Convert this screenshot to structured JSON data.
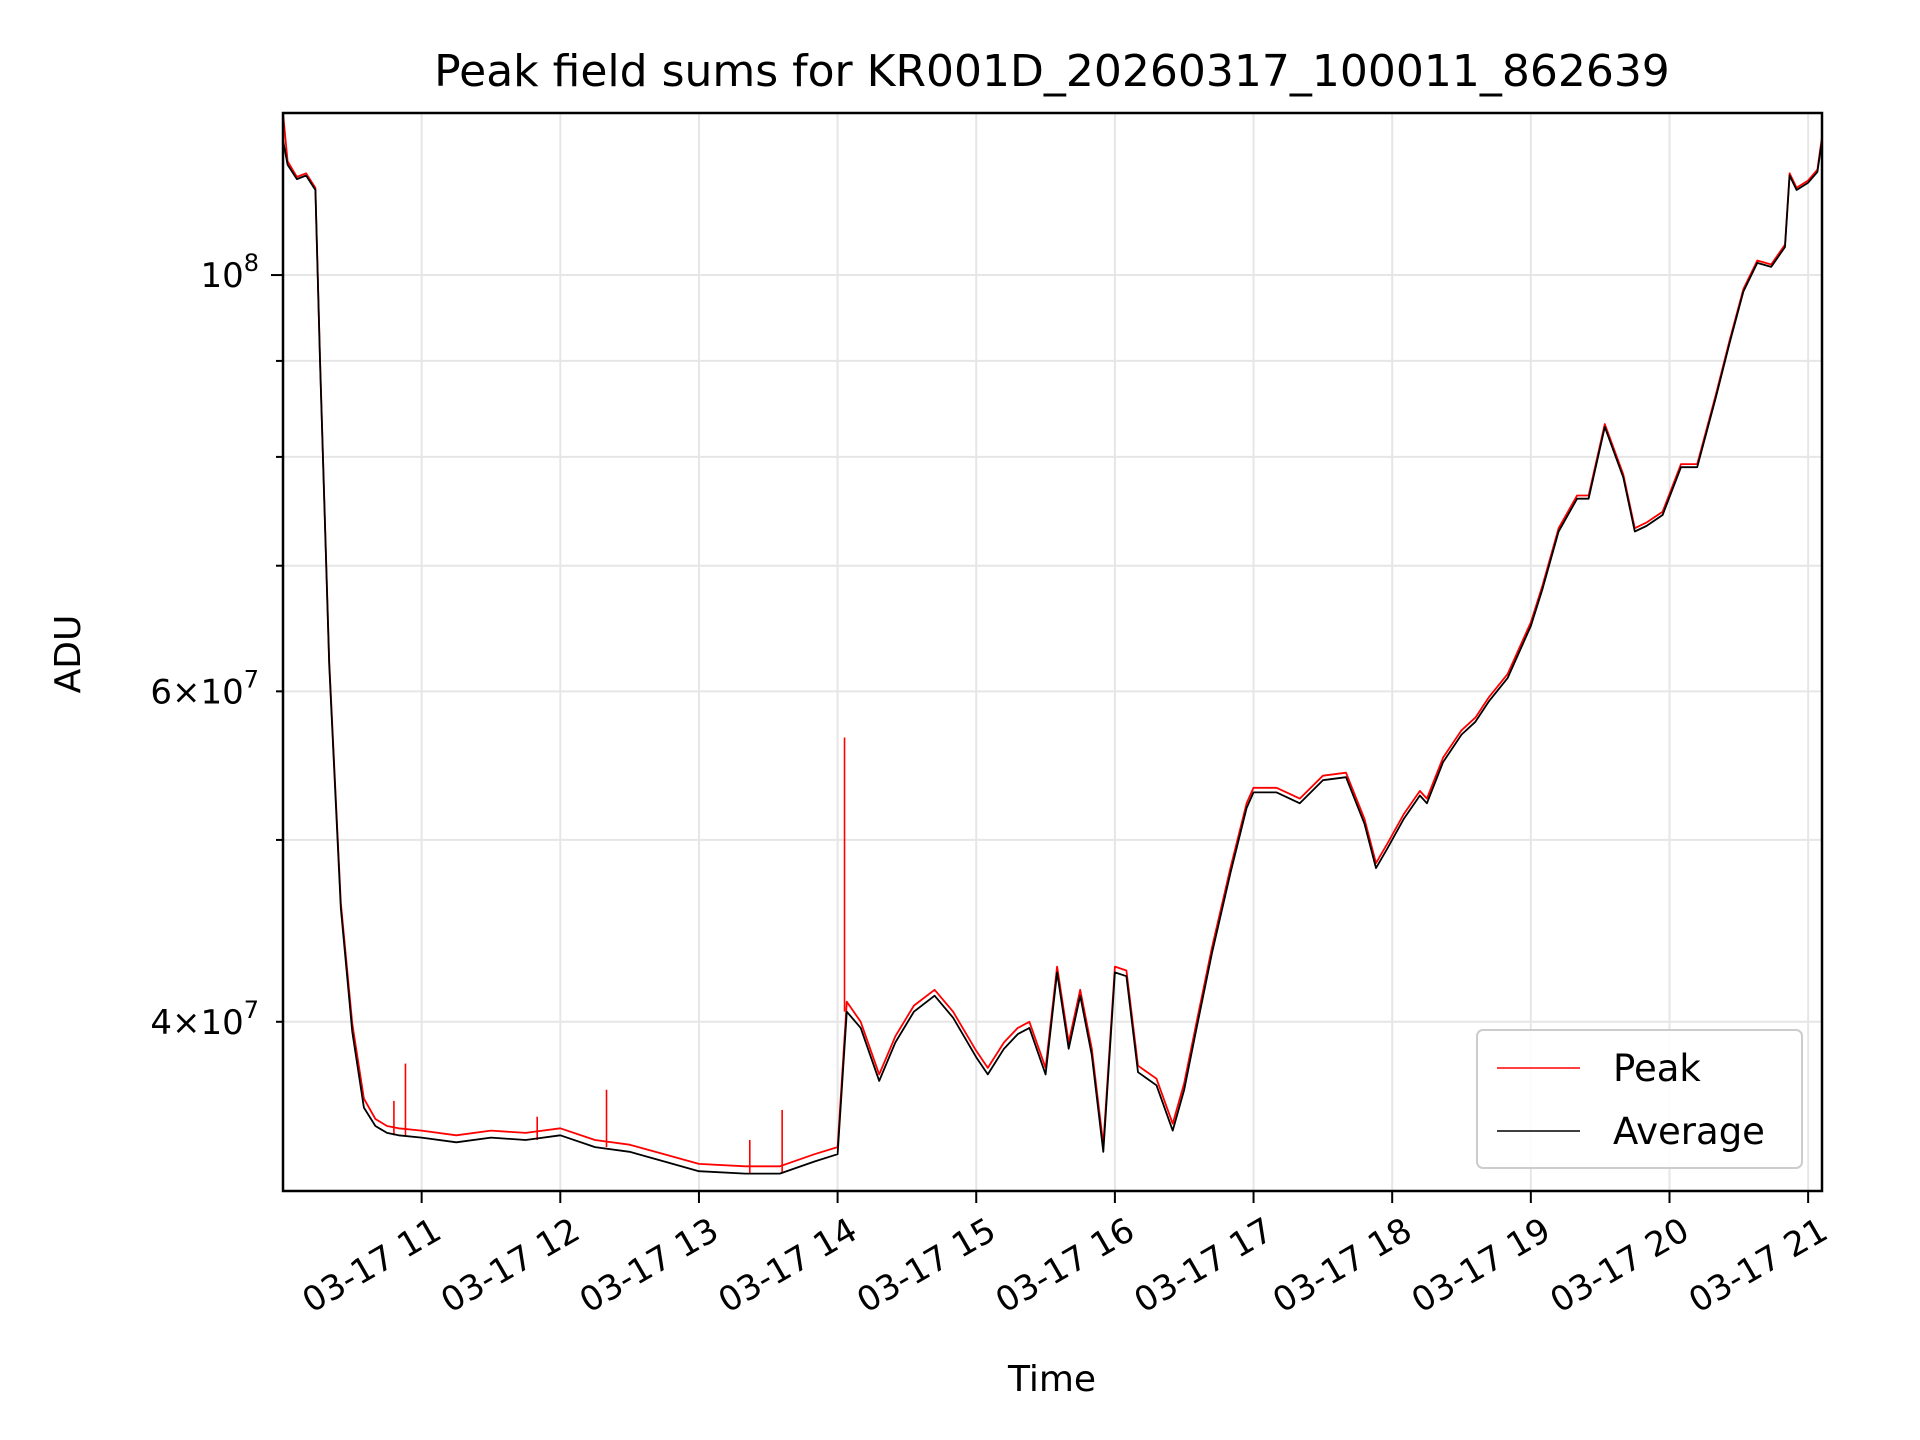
{
  "chart_data": {
    "type": "line",
    "title": "Peak field sums for KR001D_20260317_100011_862639",
    "xlabel": "Time",
    "ylabel": "ADU",
    "y_scale": "log",
    "grid": true,
    "legend_position": "lower-right",
    "xlim": [
      "2026-03-17 10:00",
      "2026-03-17 21:06"
    ],
    "ylim": [
      32500000,
      122000000
    ],
    "x_ticks": [
      "2026-03-17 11:00",
      "2026-03-17 12:00",
      "2026-03-17 13:00",
      "2026-03-17 14:00",
      "2026-03-17 15:00",
      "2026-03-17 16:00",
      "2026-03-17 17:00",
      "2026-03-17 18:00",
      "2026-03-17 19:00",
      "2026-03-17 20:00",
      "2026-03-17 21:00"
    ],
    "x_tick_labels": [
      "03-17 11",
      "03-17 12",
      "03-17 13",
      "03-17 14",
      "03-17 15",
      "03-17 16",
      "03-17 17",
      "03-17 18",
      "03-17 19",
      "03-17 20",
      "03-17 21"
    ],
    "y_major_ticks": [
      {
        "value": 100000000,
        "base": "10",
        "exp": "8"
      }
    ],
    "y_minor_ticks": [
      {
        "value": 40000000,
        "mant": "4",
        "base": "10",
        "exp": "7"
      },
      {
        "value": 60000000,
        "mant": "6",
        "base": "10",
        "exp": "7"
      },
      {
        "value": 50000000
      },
      {
        "value": 70000000
      },
      {
        "value": 80000000
      },
      {
        "value": 90000000
      }
    ],
    "x": [
      "2026-03-17 10:00",
      "2026-03-17 10:02",
      "2026-03-17 10:06",
      "2026-03-17 10:10",
      "2026-03-17 10:14",
      "2026-03-17 10:16",
      "2026-03-17 10:20",
      "2026-03-17 10:25",
      "2026-03-17 10:30",
      "2026-03-17 10:35",
      "2026-03-17 10:40",
      "2026-03-17 10:45",
      "2026-03-17 10:50",
      "2026-03-17 11:00",
      "2026-03-17 11:15",
      "2026-03-17 11:30",
      "2026-03-17 11:45",
      "2026-03-17 12:00",
      "2026-03-17 12:15",
      "2026-03-17 12:30",
      "2026-03-17 12:45",
      "2026-03-17 13:00",
      "2026-03-17 13:20",
      "2026-03-17 13:35",
      "2026-03-17 13:50",
      "2026-03-17 14:00",
      "2026-03-17 14:04",
      "2026-03-17 14:10",
      "2026-03-17 14:18",
      "2026-03-17 14:25",
      "2026-03-17 14:33",
      "2026-03-17 14:42",
      "2026-03-17 14:50",
      "2026-03-17 15:00",
      "2026-03-17 15:05",
      "2026-03-17 15:12",
      "2026-03-17 15:18",
      "2026-03-17 15:23",
      "2026-03-17 15:30",
      "2026-03-17 15:35",
      "2026-03-17 15:40",
      "2026-03-17 15:45",
      "2026-03-17 15:50",
      "2026-03-17 15:55",
      "2026-03-17 16:00",
      "2026-03-17 16:05",
      "2026-03-17 16:10",
      "2026-03-17 16:18",
      "2026-03-17 16:25",
      "2026-03-17 16:30",
      "2026-03-17 16:35",
      "2026-03-17 16:42",
      "2026-03-17 16:50",
      "2026-03-17 16:57",
      "2026-03-17 17:00",
      "2026-03-17 17:10",
      "2026-03-17 17:20",
      "2026-03-17 17:30",
      "2026-03-17 17:40",
      "2026-03-17 17:48",
      "2026-03-17 17:53",
      "2026-03-17 17:58",
      "2026-03-17 18:05",
      "2026-03-17 18:12",
      "2026-03-17 18:15",
      "2026-03-17 18:22",
      "2026-03-17 18:30",
      "2026-03-17 18:36",
      "2026-03-17 18:42",
      "2026-03-17 18:50",
      "2026-03-17 19:00",
      "2026-03-17 19:05",
      "2026-03-17 19:12",
      "2026-03-17 19:20",
      "2026-03-17 19:25",
      "2026-03-17 19:32",
      "2026-03-17 19:40",
      "2026-03-17 19:45",
      "2026-03-17 19:50",
      "2026-03-17 19:57",
      "2026-03-17 20:05",
      "2026-03-17 20:12",
      "2026-03-17 20:20",
      "2026-03-17 20:26",
      "2026-03-17 20:32",
      "2026-03-17 20:38",
      "2026-03-17 20:44",
      "2026-03-17 20:50",
      "2026-03-17 20:52",
      "2026-03-17 20:55",
      "2026-03-17 21:00",
      "2026-03-17 21:04",
      "2026-03-17 21:06"
    ],
    "series": [
      {
        "name": "Average",
        "color": "#000000",
        "values": [
          118000000,
          114500000,
          112500000,
          113000000,
          111000000,
          90000000,
          62000000,
          46000000,
          39500000,
          36000000,
          35200000,
          34900000,
          34800000,
          34700000,
          34500000,
          34700000,
          34600000,
          34800000,
          34300000,
          34100000,
          33700000,
          33300000,
          33200000,
          33200000,
          33700000,
          34000000,
          40500000,
          39700000,
          37200000,
          39000000,
          40500000,
          41300000,
          40200000,
          38300000,
          37500000,
          38700000,
          39400000,
          39700000,
          37500000,
          42500000,
          38700000,
          41300000,
          38400000,
          34100000,
          42500000,
          42300000,
          37600000,
          37000000,
          35000000,
          36800000,
          39500000,
          43500000,
          48000000,
          52000000,
          53000000,
          53000000,
          52300000,
          53800000,
          54000000,
          51000000,
          48300000,
          49500000,
          51300000,
          52800000,
          52300000,
          55000000,
          56900000,
          57800000,
          59300000,
          61000000,
          65000000,
          68000000,
          73000000,
          76000000,
          76000000,
          83000000,
          78000000,
          73000000,
          73500000,
          74500000,
          79000000,
          79000000,
          86000000,
          92000000,
          98000000,
          101500000,
          101000000,
          103500000,
          113000000,
          111000000,
          112000000,
          113500000,
          118000000
        ]
      },
      {
        "name": "Peak",
        "color": "#ff0000",
        "values": [
          122000000,
          115000000,
          112800000,
          113300000,
          111300000,
          90300000,
          62300000,
          46300000,
          39900000,
          36400000,
          35500000,
          35200000,
          35100000,
          35000000,
          34800000,
          35000000,
          34900000,
          35100000,
          34600000,
          34400000,
          34000000,
          33600000,
          33500000,
          33500000,
          34000000,
          34300000,
          41000000,
          40000000,
          37500000,
          39300000,
          40800000,
          41600000,
          40500000,
          38600000,
          37800000,
          39000000,
          39700000,
          40000000,
          37800000,
          42800000,
          39000000,
          41600000,
          38700000,
          34400000,
          42800000,
          42600000,
          37900000,
          37300000,
          35300000,
          37100000,
          39800000,
          43800000,
          48300000,
          52300000,
          53300000,
          53300000,
          52600000,
          54100000,
          54300000,
          51300000,
          48600000,
          49800000,
          51600000,
          53100000,
          52600000,
          55300000,
          57200000,
          58100000,
          59600000,
          61300000,
          65300000,
          68300000,
          73300000,
          76300000,
          76300000,
          83300000,
          78300000,
          73300000,
          73800000,
          74800000,
          79300000,
          79300000,
          86300000,
          92300000,
          98300000,
          101800000,
          101300000,
          103800000,
          113300000,
          111300000,
          112300000,
          113800000,
          118500000
        ],
        "spikes": [
          {
            "x": "2026-03-17 10:48",
            "value": 36300000
          },
          {
            "x": "2026-03-17 10:53",
            "value": 38000000
          },
          {
            "x": "2026-03-17 11:50",
            "value": 35600000
          },
          {
            "x": "2026-03-17 12:20",
            "value": 36800000
          },
          {
            "x": "2026-03-17 13:22",
            "value": 34600000
          },
          {
            "x": "2026-03-17 13:36",
            "value": 35900000
          },
          {
            "x": "2026-03-17 14:03",
            "value": 56700000
          }
        ]
      }
    ]
  }
}
